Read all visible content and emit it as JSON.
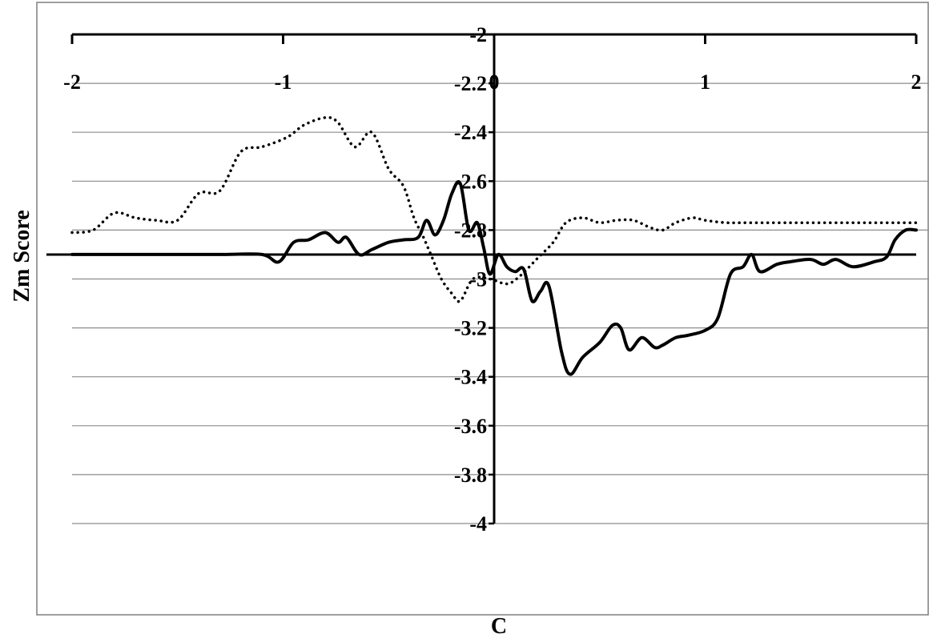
{
  "chart_data": {
    "type": "line",
    "xlabel": "C",
    "ylabel": "Zm Score",
    "xlim": [
      -2,
      2
    ],
    "ylim": [
      -4,
      -2
    ],
    "x_ticks": [
      -2,
      -1,
      0,
      1,
      2
    ],
    "y_ticks": [
      -2,
      -2.2,
      -2.4,
      -2.6,
      -2.8,
      -3,
      -3.2,
      -3.4,
      -3.6,
      -3.8,
      -4
    ],
    "x_tick_labels": [
      "-2",
      "-1",
      "0",
      "1",
      "2"
    ],
    "y_tick_labels": [
      "-2",
      "-2.2",
      "-2.4",
      "-2.6",
      "-2.8",
      "-3",
      "-3.2",
      "-3.4",
      "-3.6",
      "-3.8",
      "-4"
    ],
    "grid": true,
    "reference_line": {
      "y": -2.9
    },
    "series": [
      {
        "style": "dotted",
        "color": "#000000",
        "points": [
          [
            -2.0,
            -2.81
          ],
          [
            -1.9,
            -2.8
          ],
          [
            -1.8,
            -2.73
          ],
          [
            -1.7,
            -2.75
          ],
          [
            -1.6,
            -2.76
          ],
          [
            -1.5,
            -2.76
          ],
          [
            -1.4,
            -2.65
          ],
          [
            -1.3,
            -2.64
          ],
          [
            -1.2,
            -2.48
          ],
          [
            -1.1,
            -2.46
          ],
          [
            -0.98,
            -2.42
          ],
          [
            -0.9,
            -2.37
          ],
          [
            -0.8,
            -2.34
          ],
          [
            -0.74,
            -2.36
          ],
          [
            -0.66,
            -2.46
          ],
          [
            -0.58,
            -2.4
          ],
          [
            -0.5,
            -2.55
          ],
          [
            -0.43,
            -2.62
          ],
          [
            -0.38,
            -2.75
          ],
          [
            -0.34,
            -2.82
          ],
          [
            -0.3,
            -2.9
          ],
          [
            -0.25,
            -3.0
          ],
          [
            -0.2,
            -3.06
          ],
          [
            -0.16,
            -3.09
          ],
          [
            -0.1,
            -3.0
          ],
          [
            -0.02,
            -3.0
          ],
          [
            0.06,
            -3.02
          ],
          [
            0.12,
            -2.99
          ],
          [
            0.2,
            -2.92
          ],
          [
            0.28,
            -2.85
          ],
          [
            0.34,
            -2.77
          ],
          [
            0.42,
            -2.75
          ],
          [
            0.5,
            -2.77
          ],
          [
            0.58,
            -2.76
          ],
          [
            0.66,
            -2.76
          ],
          [
            0.74,
            -2.79
          ],
          [
            0.8,
            -2.8
          ],
          [
            0.86,
            -2.77
          ],
          [
            0.94,
            -2.75
          ],
          [
            1.0,
            -2.76
          ],
          [
            1.1,
            -2.77
          ],
          [
            1.2,
            -2.77
          ],
          [
            1.4,
            -2.77
          ],
          [
            1.6,
            -2.77
          ],
          [
            1.8,
            -2.77
          ],
          [
            2.0,
            -2.77
          ]
        ]
      },
      {
        "style": "solid",
        "color": "#000000",
        "points": [
          [
            -2.0,
            -2.9
          ],
          [
            -1.5,
            -2.9
          ],
          [
            -1.3,
            -2.9
          ],
          [
            -1.1,
            -2.9
          ],
          [
            -1.02,
            -2.93
          ],
          [
            -0.95,
            -2.85
          ],
          [
            -0.88,
            -2.84
          ],
          [
            -0.8,
            -2.81
          ],
          [
            -0.74,
            -2.85
          ],
          [
            -0.7,
            -2.83
          ],
          [
            -0.64,
            -2.9
          ],
          [
            -0.58,
            -2.88
          ],
          [
            -0.5,
            -2.85
          ],
          [
            -0.43,
            -2.84
          ],
          [
            -0.36,
            -2.83
          ],
          [
            -0.32,
            -2.76
          ],
          [
            -0.28,
            -2.82
          ],
          [
            -0.24,
            -2.76
          ],
          [
            -0.2,
            -2.65
          ],
          [
            -0.16,
            -2.61
          ],
          [
            -0.12,
            -2.8
          ],
          [
            -0.08,
            -2.77
          ],
          [
            -0.05,
            -2.87
          ],
          [
            -0.02,
            -2.98
          ],
          [
            0.02,
            -2.9
          ],
          [
            0.06,
            -2.95
          ],
          [
            0.1,
            -2.97
          ],
          [
            0.14,
            -2.96
          ],
          [
            0.18,
            -3.09
          ],
          [
            0.22,
            -3.05
          ],
          [
            0.26,
            -3.03
          ],
          [
            0.32,
            -3.3
          ],
          [
            0.36,
            -3.39
          ],
          [
            0.42,
            -3.32
          ],
          [
            0.5,
            -3.26
          ],
          [
            0.56,
            -3.19
          ],
          [
            0.6,
            -3.2
          ],
          [
            0.64,
            -3.29
          ],
          [
            0.7,
            -3.24
          ],
          [
            0.76,
            -3.28
          ],
          [
            0.8,
            -3.27
          ],
          [
            0.86,
            -3.24
          ],
          [
            0.92,
            -3.23
          ],
          [
            1.0,
            -3.21
          ],
          [
            1.06,
            -3.16
          ],
          [
            1.12,
            -2.98
          ],
          [
            1.18,
            -2.95
          ],
          [
            1.22,
            -2.9
          ],
          [
            1.26,
            -2.97
          ],
          [
            1.34,
            -2.94
          ],
          [
            1.4,
            -2.93
          ],
          [
            1.5,
            -2.92
          ],
          [
            1.56,
            -2.94
          ],
          [
            1.62,
            -2.92
          ],
          [
            1.7,
            -2.95
          ],
          [
            1.8,
            -2.93
          ],
          [
            1.86,
            -2.91
          ],
          [
            1.9,
            -2.84
          ],
          [
            1.95,
            -2.8
          ],
          [
            2.0,
            -2.8
          ]
        ]
      }
    ]
  }
}
